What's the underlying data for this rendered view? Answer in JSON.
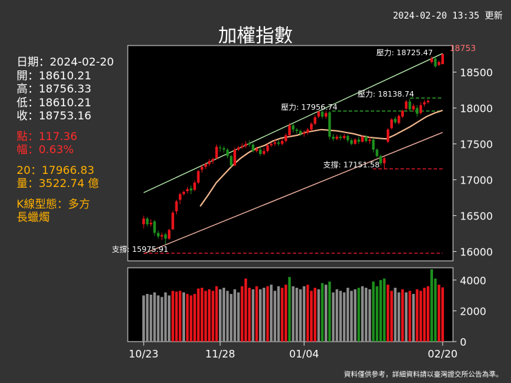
{
  "header": {
    "updated": "2024-02-20 13:35 更新",
    "title": "加權指數"
  },
  "info": {
    "date": "日期：2024-02-20",
    "open": "開：18610.21",
    "high": "高：18756.33",
    "low": "低：18610.21",
    "close": "收：18753.16",
    "points": "點：117.36",
    "pct": "幅：0.63%",
    "ma20": "20：17966.83",
    "volume": "量：3522.74 億",
    "pattern_label": "K線型態：多方",
    "pattern_value": "長蠟燭"
  },
  "footer": "資料僅供參考，詳細資料請以臺灣證交所公告為準。",
  "colors": {
    "up": "#e8141a",
    "down": "#1e8f1e",
    "ma": "#f5b98f",
    "upper_line": "#b9f0b0",
    "lower_line": "#f5b5a5",
    "volume_neutral": "#8c8c8c",
    "dash_red": "#d8182a",
    "dash_green": "#2fa82f"
  },
  "chart_data": {
    "type": "candlestick",
    "x_tick_labels": [
      "10/23",
      "11/28",
      "01/04",
      "02/20"
    ],
    "price_axis": {
      "ticks": [
        16000,
        16500,
        17000,
        17500,
        18000,
        18500
      ],
      "ylim": [
        15870,
        18870
      ]
    },
    "volume_axis": {
      "ticks": [
        0,
        2000,
        4000
      ],
      "ylim": [
        0,
        4800
      ]
    },
    "last_price_label": "18753",
    "annotations": [
      {
        "text": "壓力: 18725.47",
        "value": 18725.47,
        "style": "none"
      },
      {
        "text": "壓力: 18138.74",
        "value": 18138.74,
        "style": "green-dash"
      },
      {
        "text": "壓力: 17956.74",
        "value": 17956.74,
        "style": "green-dash"
      },
      {
        "text": "支撐: 17151.58",
        "value": 17151.58,
        "style": "red-dash"
      },
      {
        "text": "支撐: 15975.91",
        "value": 15975.91,
        "style": "red-dash"
      }
    ],
    "trend_lines": [
      {
        "name": "upper",
        "from": [
          0,
          16820
        ],
        "to": [
          82,
          18760
        ]
      },
      {
        "name": "lower",
        "from": [
          0,
          15970
        ],
        "to": [
          82,
          17660
        ]
      }
    ],
    "ma_series": [
      [
        21,
        16630
      ],
      [
        24,
        16790
      ],
      [
        27,
        16960
      ],
      [
        30,
        17080
      ],
      [
        33,
        17200
      ],
      [
        36,
        17300
      ],
      [
        39,
        17380
      ],
      [
        42,
        17440
      ],
      [
        45,
        17480
      ],
      [
        48,
        17540
      ],
      [
        51,
        17580
      ],
      [
        54,
        17600
      ],
      [
        57,
        17620
      ],
      [
        60,
        17660
      ],
      [
        63,
        17680
      ],
      [
        66,
        17700
      ],
      [
        69,
        17690
      ],
      [
        72,
        17680
      ],
      [
        75,
        17660
      ],
      [
        78,
        17640
      ],
      [
        81,
        17610
      ],
      [
        84,
        17590
      ],
      [
        87,
        17580
      ],
      [
        90,
        17570
      ],
      [
        93,
        17620
      ],
      [
        96,
        17680
      ],
      [
        99,
        17740
      ],
      [
        102,
        17810
      ],
      [
        105,
        17880
      ],
      [
        108,
        17930
      ],
      [
        111,
        17966.83
      ]
    ],
    "candles": [
      {
        "o": 16380,
        "c": 16460,
        "h": 16500,
        "l": 16320
      },
      {
        "o": 16460,
        "c": 16380,
        "h": 16480,
        "l": 16350
      },
      {
        "o": 16380,
        "c": 16400,
        "h": 16450,
        "l": 16350
      },
      {
        "o": 16420,
        "c": 16260,
        "h": 16440,
        "l": 16220
      },
      {
        "o": 16260,
        "c": 16210,
        "h": 16290,
        "l": 16180
      },
      {
        "o": 16210,
        "c": 16230,
        "h": 16260,
        "l": 16160
      },
      {
        "o": 16240,
        "c": 16180,
        "h": 16260,
        "l": 16100
      },
      {
        "o": 16180,
        "c": 16300,
        "h": 16320,
        "l": 16160
      },
      {
        "o": 16310,
        "c": 16540,
        "h": 16570,
        "l": 16300
      },
      {
        "o": 16560,
        "c": 16700,
        "h": 16720,
        "l": 16520
      },
      {
        "o": 16720,
        "c": 16800,
        "h": 16820,
        "l": 16660
      },
      {
        "o": 16800,
        "c": 16830,
        "h": 16850,
        "l": 16780
      },
      {
        "o": 16840,
        "c": 16870,
        "h": 16900,
        "l": 16810
      },
      {
        "o": 16880,
        "c": 16850,
        "h": 16920,
        "l": 16800
      },
      {
        "o": 16860,
        "c": 16960,
        "h": 16990,
        "l": 16840
      },
      {
        "o": 16960,
        "c": 17120,
        "h": 17140,
        "l": 16940
      },
      {
        "o": 17140,
        "c": 17180,
        "h": 17210,
        "l": 17100
      },
      {
        "o": 17180,
        "c": 17220,
        "h": 17240,
        "l": 17150
      },
      {
        "o": 17220,
        "c": 17260,
        "h": 17290,
        "l": 17190
      },
      {
        "o": 17260,
        "c": 17290,
        "h": 17310,
        "l": 17220
      },
      {
        "o": 17300,
        "c": 17460,
        "h": 17490,
        "l": 17280
      },
      {
        "o": 17450,
        "c": 17440,
        "h": 17480,
        "l": 17390
      },
      {
        "o": 17440,
        "c": 17420,
        "h": 17470,
        "l": 17380
      },
      {
        "o": 17420,
        "c": 17330,
        "h": 17440,
        "l": 17300
      },
      {
        "o": 17330,
        "c": 17200,
        "h": 17350,
        "l": 17180
      },
      {
        "o": 17200,
        "c": 17420,
        "h": 17450,
        "l": 17190
      },
      {
        "o": 17420,
        "c": 17450,
        "h": 17470,
        "l": 17400
      },
      {
        "o": 17450,
        "c": 17470,
        "h": 17510,
        "l": 17430
      },
      {
        "o": 17470,
        "c": 17500,
        "h": 17540,
        "l": 17440
      },
      {
        "o": 17510,
        "c": 17490,
        "h": 17550,
        "l": 17460
      },
      {
        "o": 17490,
        "c": 17400,
        "h": 17510,
        "l": 17380
      },
      {
        "o": 17400,
        "c": 17430,
        "h": 17460,
        "l": 17380
      },
      {
        "o": 17420,
        "c": 17360,
        "h": 17460,
        "l": 17330
      },
      {
        "o": 17360,
        "c": 17400,
        "h": 17440,
        "l": 17340
      },
      {
        "o": 17400,
        "c": 17480,
        "h": 17500,
        "l": 17380
      },
      {
        "o": 17480,
        "c": 17500,
        "h": 17520,
        "l": 17460
      },
      {
        "o": 17500,
        "c": 17520,
        "h": 17560,
        "l": 17470
      },
      {
        "o": 17520,
        "c": 17500,
        "h": 17550,
        "l": 17470
      },
      {
        "o": 17500,
        "c": 17540,
        "h": 17570,
        "l": 17480
      },
      {
        "o": 17540,
        "c": 17620,
        "h": 17650,
        "l": 17520
      },
      {
        "o": 17620,
        "c": 17760,
        "h": 17790,
        "l": 17600
      },
      {
        "o": 17760,
        "c": 17700,
        "h": 17780,
        "l": 17660
      },
      {
        "o": 17700,
        "c": 17680,
        "h": 17720,
        "l": 17640
      },
      {
        "o": 17680,
        "c": 17640,
        "h": 17700,
        "l": 17610
      },
      {
        "o": 17640,
        "c": 17660,
        "h": 17690,
        "l": 17600
      },
      {
        "o": 17660,
        "c": 17700,
        "h": 17720,
        "l": 17630
      },
      {
        "o": 17700,
        "c": 17780,
        "h": 17800,
        "l": 17680
      },
      {
        "o": 17780,
        "c": 17870,
        "h": 17900,
        "l": 17760
      },
      {
        "o": 17880,
        "c": 17950,
        "h": 17960,
        "l": 17860
      },
      {
        "o": 17950,
        "c": 17880,
        "h": 17970,
        "l": 17850
      },
      {
        "o": 17880,
        "c": 17930,
        "h": 17960,
        "l": 17850
      },
      {
        "o": 17940,
        "c": 17600,
        "h": 17960,
        "l": 17560
      },
      {
        "o": 17600,
        "c": 17570,
        "h": 17640,
        "l": 17540
      },
      {
        "o": 17570,
        "c": 17600,
        "h": 17630,
        "l": 17550
      },
      {
        "o": 17600,
        "c": 17580,
        "h": 17630,
        "l": 17550
      },
      {
        "o": 17580,
        "c": 17610,
        "h": 17640,
        "l": 17560
      },
      {
        "o": 17610,
        "c": 17550,
        "h": 17630,
        "l": 17520
      },
      {
        "o": 17550,
        "c": 17500,
        "h": 17580,
        "l": 17480
      },
      {
        "o": 17500,
        "c": 17560,
        "h": 17580,
        "l": 17490
      },
      {
        "o": 17560,
        "c": 17530,
        "h": 17600,
        "l": 17500
      },
      {
        "o": 17530,
        "c": 17600,
        "h": 17620,
        "l": 17520
      },
      {
        "o": 17600,
        "c": 17540,
        "h": 17620,
        "l": 17520
      },
      {
        "o": 17540,
        "c": 17560,
        "h": 17600,
        "l": 17500
      },
      {
        "o": 17560,
        "c": 17420,
        "h": 17580,
        "l": 17380
      },
      {
        "o": 17420,
        "c": 17330,
        "h": 17440,
        "l": 17310
      },
      {
        "o": 17330,
        "c": 17230,
        "h": 17350,
        "l": 17200
      },
      {
        "o": 17230,
        "c": 17300,
        "h": 17320,
        "l": 17150
      },
      {
        "o": 17530,
        "c": 17700,
        "h": 17720,
        "l": 17510
      },
      {
        "o": 17720,
        "c": 17840,
        "h": 17860,
        "l": 17700
      },
      {
        "o": 17850,
        "c": 17800,
        "h": 17880,
        "l": 17780
      },
      {
        "o": 17790,
        "c": 17890,
        "h": 17910,
        "l": 17770
      },
      {
        "o": 17880,
        "c": 17960,
        "h": 17980,
        "l": 17860
      },
      {
        "o": 17990,
        "c": 18090,
        "h": 18110,
        "l": 17970
      },
      {
        "o": 18090,
        "c": 17980,
        "h": 18130,
        "l": 17960
      },
      {
        "o": 17980,
        "c": 18030,
        "h": 18060,
        "l": 17950
      },
      {
        "o": 18000,
        "c": 17920,
        "h": 18040,
        "l": 17880
      },
      {
        "o": 17930,
        "c": 18040,
        "h": 18080,
        "l": 17910
      },
      {
        "o": 18050,
        "c": 18080,
        "h": 18110,
        "l": 18020
      },
      {
        "o": 18080,
        "c": 18100,
        "h": 18120,
        "l": 18060
      },
      {
        "o": 18640,
        "c": 18690,
        "h": 18720,
        "l": 18620
      },
      {
        "o": 18690,
        "c": 18580,
        "h": 18710,
        "l": 18560
      },
      {
        "o": 18600,
        "c": 18640,
        "h": 18660,
        "l": 18580
      },
      {
        "o": 18610.21,
        "c": 18753.16,
        "h": 18756.33,
        "l": 18610.21
      }
    ],
    "volume": [
      {
        "v": 3000,
        "d": "n"
      },
      {
        "v": 3100,
        "d": "n"
      },
      {
        "v": 3050,
        "d": "n"
      },
      {
        "v": 3200,
        "d": "n"
      },
      {
        "v": 3000,
        "d": "n"
      },
      {
        "v": 2900,
        "d": "n"
      },
      {
        "v": 3200,
        "d": "n"
      },
      {
        "v": 3000,
        "d": "n"
      },
      {
        "v": 3300,
        "d": "u"
      },
      {
        "v": 3250,
        "d": "u"
      },
      {
        "v": 3300,
        "d": "u"
      },
      {
        "v": 3200,
        "d": "n"
      },
      {
        "v": 3100,
        "d": "u"
      },
      {
        "v": 3000,
        "d": "u"
      },
      {
        "v": 3100,
        "d": "u"
      },
      {
        "v": 3450,
        "d": "u"
      },
      {
        "v": 3500,
        "d": "u"
      },
      {
        "v": 3300,
        "d": "u"
      },
      {
        "v": 3400,
        "d": "u"
      },
      {
        "v": 3300,
        "d": "u"
      },
      {
        "v": 3600,
        "d": "u"
      },
      {
        "v": 3400,
        "d": "n"
      },
      {
        "v": 3500,
        "d": "n"
      },
      {
        "v": 3300,
        "d": "n"
      },
      {
        "v": 3100,
        "d": "n"
      },
      {
        "v": 3400,
        "d": "n"
      },
      {
        "v": 3200,
        "d": "n"
      },
      {
        "v": 3600,
        "d": "u"
      },
      {
        "v": 4100,
        "d": "u"
      },
      {
        "v": 3500,
        "d": "u"
      },
      {
        "v": 3400,
        "d": "n"
      },
      {
        "v": 3600,
        "d": "u"
      },
      {
        "v": 3400,
        "d": "n"
      },
      {
        "v": 3500,
        "d": "n"
      },
      {
        "v": 3600,
        "d": "u"
      },
      {
        "v": 3700,
        "d": "n"
      },
      {
        "v": 3300,
        "d": "n"
      },
      {
        "v": 3600,
        "d": "n"
      },
      {
        "v": 3500,
        "d": "u"
      },
      {
        "v": 3700,
        "d": "u"
      },
      {
        "v": 4200,
        "d": "d"
      },
      {
        "v": 3600,
        "d": "n"
      },
      {
        "v": 3500,
        "d": "n"
      },
      {
        "v": 3400,
        "d": "n"
      },
      {
        "v": 3600,
        "d": "n"
      },
      {
        "v": 3700,
        "d": "u"
      },
      {
        "v": 3300,
        "d": "u"
      },
      {
        "v": 3500,
        "d": "u"
      },
      {
        "v": 3400,
        "d": "n"
      },
      {
        "v": 3800,
        "d": "d"
      },
      {
        "v": 3700,
        "d": "n"
      },
      {
        "v": 3900,
        "d": "d"
      },
      {
        "v": 3200,
        "d": "n"
      },
      {
        "v": 3400,
        "d": "n"
      },
      {
        "v": 3300,
        "d": "n"
      },
      {
        "v": 3200,
        "d": "n"
      },
      {
        "v": 3500,
        "d": "n"
      },
      {
        "v": 3300,
        "d": "n"
      },
      {
        "v": 3400,
        "d": "n"
      },
      {
        "v": 3500,
        "d": "d"
      },
      {
        "v": 3600,
        "d": "n"
      },
      {
        "v": 3500,
        "d": "n"
      },
      {
        "v": 3400,
        "d": "n"
      },
      {
        "v": 3900,
        "d": "d"
      },
      {
        "v": 3600,
        "d": "d"
      },
      {
        "v": 4000,
        "d": "d"
      },
      {
        "v": 4100,
        "d": "d"
      },
      {
        "v": 3700,
        "d": "u"
      },
      {
        "v": 3300,
        "d": "u"
      },
      {
        "v": 3500,
        "d": "n"
      },
      {
        "v": 3200,
        "d": "n"
      },
      {
        "v": 3400,
        "d": "u"
      },
      {
        "v": 3200,
        "d": "n"
      },
      {
        "v": 3300,
        "d": "u"
      },
      {
        "v": 3100,
        "d": "n"
      },
      {
        "v": 3400,
        "d": "u"
      },
      {
        "v": 3300,
        "d": "u"
      },
      {
        "v": 3500,
        "d": "u"
      },
      {
        "v": 3600,
        "d": "u"
      },
      {
        "v": 4700,
        "d": "d"
      },
      {
        "v": 4100,
        "d": "d"
      },
      {
        "v": 3700,
        "d": "u"
      },
      {
        "v": 3522.74,
        "d": "u"
      }
    ]
  }
}
